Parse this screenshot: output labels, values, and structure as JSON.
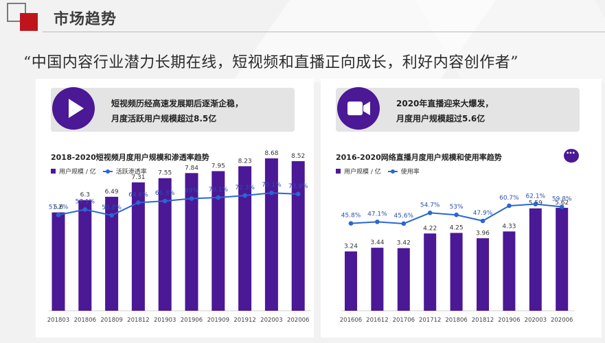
{
  "header": {
    "title": "市场趋势"
  },
  "quote": "“中国内容行业潜力长期在线，短视频和直播正向成长，利好内容创作者”",
  "panels": [
    {
      "callout": {
        "line1": "短视频历经高速发展期后逐渐企稳，",
        "line2": "月度活跃用户规模超过8.5亿",
        "icon": "play-icon"
      },
      "legend": {
        "bar": "用户规模 / 亿",
        "line": "活跃渗透率"
      }
    },
    {
      "callout": {
        "line1": "2020年直播迎来大爆发，",
        "line2": "月度用户规模超过5.6亿",
        "icon": "video-camera-icon"
      },
      "legend": {
        "bar": "用户规模 / 亿",
        "line": "使用率"
      }
    }
  ],
  "colors": {
    "bar": "#4b1896",
    "line": "#2a66d4",
    "accent": "#c0141d"
  },
  "chart_data": [
    {
      "type": "bar",
      "title": "2018-2020短视频月度用户规模和渗透率趋势",
      "categories": [
        "201803",
        "201806",
        "201809",
        "201812",
        "201903",
        "201906",
        "201909",
        "201912",
        "202003",
        "202006"
      ],
      "series": [
        {
          "name": "用户规模 / 亿",
          "type": "bar",
          "values": [
            5.6,
            6.3,
            6.49,
            7.31,
            7.55,
            7.84,
            7.95,
            8.23,
            8.68,
            8.52
          ],
          "labels": [
            "5.6",
            "6.3",
            "6.49",
            "7.31",
            "7.55",
            "7.84",
            "7.95",
            "8.23",
            "8.68",
            "8.52"
          ]
        },
        {
          "name": "活跃渗透率",
          "type": "line",
          "values": [
            51.2,
            57.1,
            50.8,
            64.6,
            66.3,
            69,
            70.1,
            72.3,
            75.1,
            73.9
          ],
          "labels": [
            "51.2%",
            "57.1%",
            "50.8%",
            "64.6%",
            "66.3%",
            "69%",
            "70.1%",
            "72.3%",
            "75.1%",
            "73.9%"
          ]
        }
      ]
    },
    {
      "type": "bar",
      "title": "2016-2020网络直播月度用户规模和使用率趋势",
      "categories": [
        "201606",
        "201612",
        "201706",
        "201712",
        "201806",
        "201812",
        "201906",
        "202003",
        "202006"
      ],
      "series": [
        {
          "name": "用户规模 / 亿",
          "type": "bar",
          "values": [
            3.24,
            3.44,
            3.42,
            4.22,
            4.25,
            3.96,
            4.33,
            5.59,
            5.62
          ],
          "labels": [
            "3.24",
            "3.44",
            "3.42",
            "4.22",
            "4.25",
            "3.96",
            "4.33",
            "5.59",
            "5.62"
          ]
        },
        {
          "name": "使用率",
          "type": "line",
          "values": [
            45.8,
            47.1,
            45.6,
            54.7,
            53,
            47.9,
            60.7,
            62.1,
            59.8
          ],
          "labels": [
            "45.8%",
            "47.1%",
            "45.6%",
            "54.7%",
            "53%",
            "47.9%",
            "60.7%",
            "62.1%",
            "59.8%"
          ]
        }
      ]
    }
  ]
}
